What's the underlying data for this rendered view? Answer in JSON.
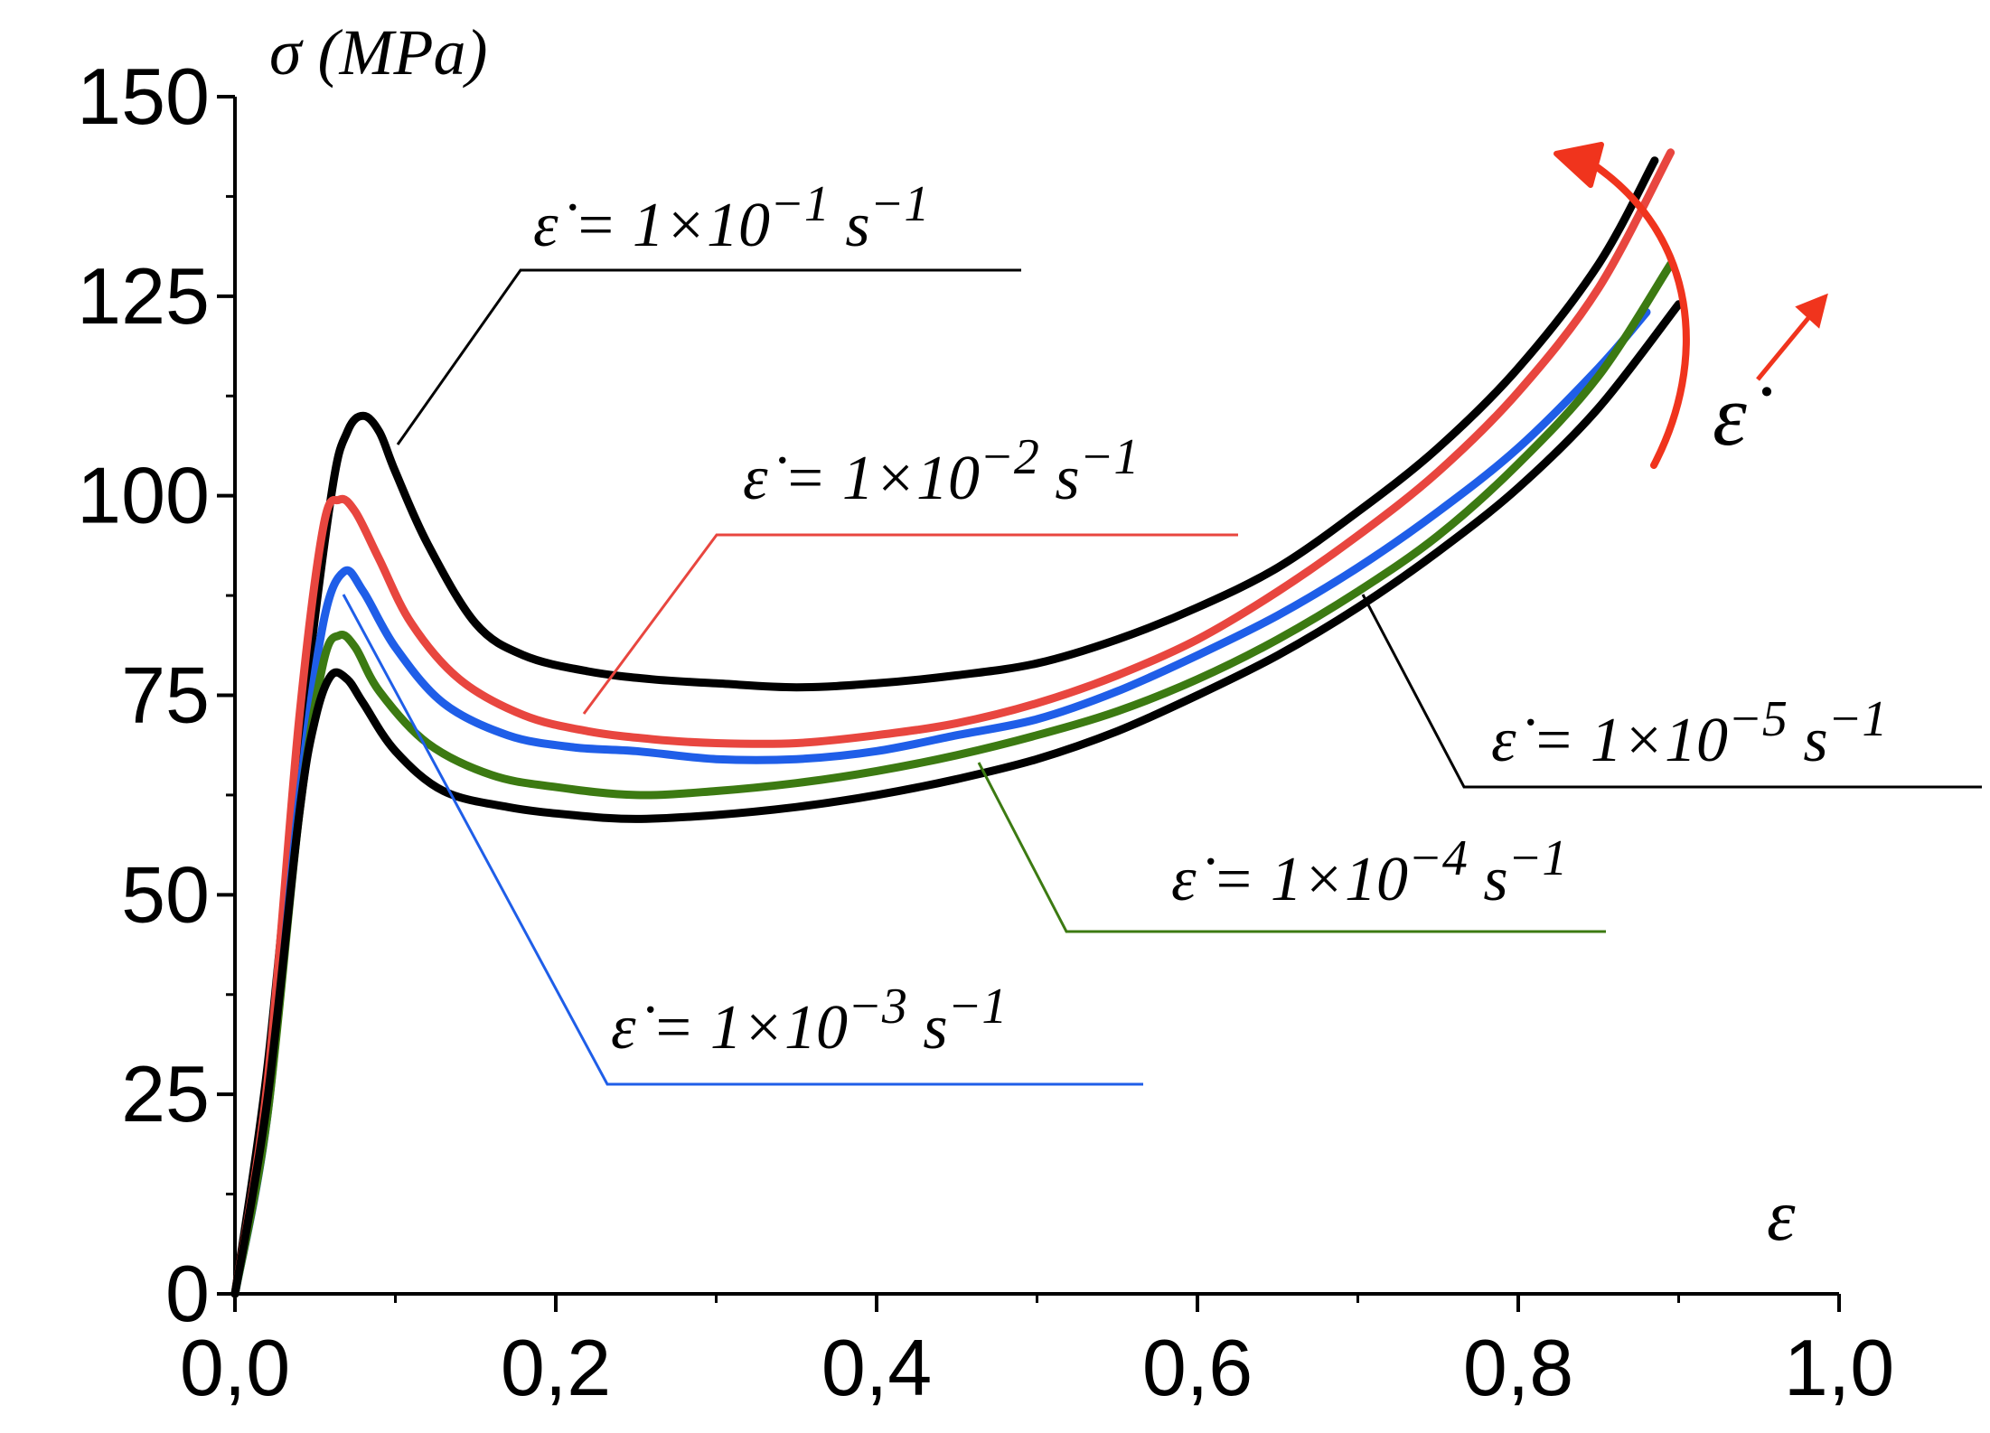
{
  "chart_data": {
    "type": "line",
    "title": "",
    "xlabel": "ε",
    "ylabel": "σ (MPa)",
    "xlim": [
      0,
      1.0
    ],
    "ylim": [
      0,
      150
    ],
    "x_ticks": [
      "0,0",
      "0,2",
      "0,4",
      "0,6",
      "0,8",
      "1,0"
    ],
    "y_ticks": [
      "0",
      "25",
      "50",
      "75",
      "100",
      "125",
      "150"
    ],
    "grid": false,
    "trend_label": "ε̇",
    "series": [
      {
        "name": "ε̇ = 1×10⁻¹ s⁻¹",
        "label_parts": [
          "ε̇ = 1×10",
          "−1",
          " s",
          "−1"
        ],
        "color": "#000000",
        "points": [
          [
            0,
            0
          ],
          [
            0.02,
            28
          ],
          [
            0.04,
            68
          ],
          [
            0.06,
            100
          ],
          [
            0.07,
            108
          ],
          [
            0.08,
            110
          ],
          [
            0.09,
            108
          ],
          [
            0.1,
            103
          ],
          [
            0.12,
            94
          ],
          [
            0.15,
            84
          ],
          [
            0.18,
            80
          ],
          [
            0.22,
            78
          ],
          [
            0.26,
            77
          ],
          [
            0.3,
            76.5
          ],
          [
            0.35,
            76
          ],
          [
            0.4,
            76.5
          ],
          [
            0.45,
            77.5
          ],
          [
            0.5,
            79
          ],
          [
            0.55,
            82
          ],
          [
            0.6,
            86
          ],
          [
            0.65,
            91
          ],
          [
            0.7,
            98
          ],
          [
            0.75,
            106
          ],
          [
            0.8,
            116
          ],
          [
            0.85,
            129
          ],
          [
            0.885,
            142
          ]
        ]
      },
      {
        "name": "ε̇ = 1×10⁻² s⁻¹",
        "label_parts": [
          "ε̇ = 1×10",
          "−2",
          " s",
          "−1"
        ],
        "color": "#e8463f",
        "points": [
          [
            0,
            0
          ],
          [
            0.02,
            26
          ],
          [
            0.04,
            72
          ],
          [
            0.055,
            96
          ],
          [
            0.065,
            99.5
          ],
          [
            0.075,
            98
          ],
          [
            0.09,
            92
          ],
          [
            0.11,
            84
          ],
          [
            0.14,
            77
          ],
          [
            0.18,
            72.5
          ],
          [
            0.22,
            70.5
          ],
          [
            0.26,
            69.5
          ],
          [
            0.3,
            69
          ],
          [
            0.35,
            69
          ],
          [
            0.4,
            70
          ],
          [
            0.45,
            71.5
          ],
          [
            0.5,
            74
          ],
          [
            0.55,
            77.5
          ],
          [
            0.6,
            82
          ],
          [
            0.65,
            88
          ],
          [
            0.7,
            95
          ],
          [
            0.75,
            103
          ],
          [
            0.8,
            113
          ],
          [
            0.85,
            126
          ],
          [
            0.895,
            143
          ]
        ]
      },
      {
        "name": "ε̇ = 1×10⁻³ s⁻¹",
        "label_parts": [
          "ε̇ = 1×10",
          "−3",
          " s",
          "−1"
        ],
        "color": "#1f5ee8",
        "points": [
          [
            0,
            0
          ],
          [
            0.02,
            22
          ],
          [
            0.04,
            62
          ],
          [
            0.055,
            84
          ],
          [
            0.068,
            90.5
          ],
          [
            0.08,
            88
          ],
          [
            0.1,
            81
          ],
          [
            0.13,
            74
          ],
          [
            0.17,
            70
          ],
          [
            0.21,
            68.5
          ],
          [
            0.25,
            68
          ],
          [
            0.3,
            67
          ],
          [
            0.35,
            67
          ],
          [
            0.4,
            68
          ],
          [
            0.45,
            70
          ],
          [
            0.5,
            72
          ],
          [
            0.55,
            75.5
          ],
          [
            0.6,
            80
          ],
          [
            0.65,
            85
          ],
          [
            0.7,
            91
          ],
          [
            0.75,
            98
          ],
          [
            0.8,
            106
          ],
          [
            0.85,
            116
          ],
          [
            0.88,
            123
          ]
        ]
      },
      {
        "name": "ε̇ = 1×10⁻⁴ s⁻¹",
        "label_parts": [
          "ε̇ = 1×10",
          "−4",
          " s",
          "−1"
        ],
        "color": "#3c7a12",
        "points": [
          [
            0,
            0
          ],
          [
            0.02,
            22
          ],
          [
            0.04,
            60
          ],
          [
            0.055,
            79
          ],
          [
            0.065,
            82.5
          ],
          [
            0.075,
            81
          ],
          [
            0.09,
            75.5
          ],
          [
            0.12,
            69
          ],
          [
            0.16,
            65
          ],
          [
            0.2,
            63.5
          ],
          [
            0.25,
            62.5
          ],
          [
            0.3,
            63
          ],
          [
            0.35,
            64
          ],
          [
            0.4,
            65.5
          ],
          [
            0.45,
            67.5
          ],
          [
            0.5,
            70
          ],
          [
            0.55,
            73
          ],
          [
            0.6,
            77
          ],
          [
            0.65,
            82
          ],
          [
            0.7,
            88
          ],
          [
            0.75,
            95
          ],
          [
            0.8,
            104
          ],
          [
            0.85,
            115
          ],
          [
            0.895,
            129
          ]
        ]
      },
      {
        "name": "ε̇ = 1×10⁻⁵ s⁻¹",
        "label_parts": [
          "ε̇ = 1×10",
          "−5",
          " s",
          "−1"
        ],
        "color": "#000000",
        "points": [
          [
            0,
            0
          ],
          [
            0.02,
            24
          ],
          [
            0.04,
            60
          ],
          [
            0.05,
            72
          ],
          [
            0.06,
            77.5
          ],
          [
            0.07,
            77
          ],
          [
            0.08,
            74
          ],
          [
            0.1,
            68
          ],
          [
            0.13,
            63
          ],
          [
            0.17,
            61
          ],
          [
            0.21,
            60
          ],
          [
            0.25,
            59.5
          ],
          [
            0.3,
            60
          ],
          [
            0.35,
            61
          ],
          [
            0.4,
            62.5
          ],
          [
            0.45,
            64.5
          ],
          [
            0.5,
            67
          ],
          [
            0.55,
            70.5
          ],
          [
            0.6,
            75
          ],
          [
            0.65,
            80
          ],
          [
            0.7,
            86
          ],
          [
            0.75,
            93
          ],
          [
            0.8,
            101
          ],
          [
            0.85,
            111
          ],
          [
            0.9,
            124
          ]
        ]
      }
    ]
  }
}
